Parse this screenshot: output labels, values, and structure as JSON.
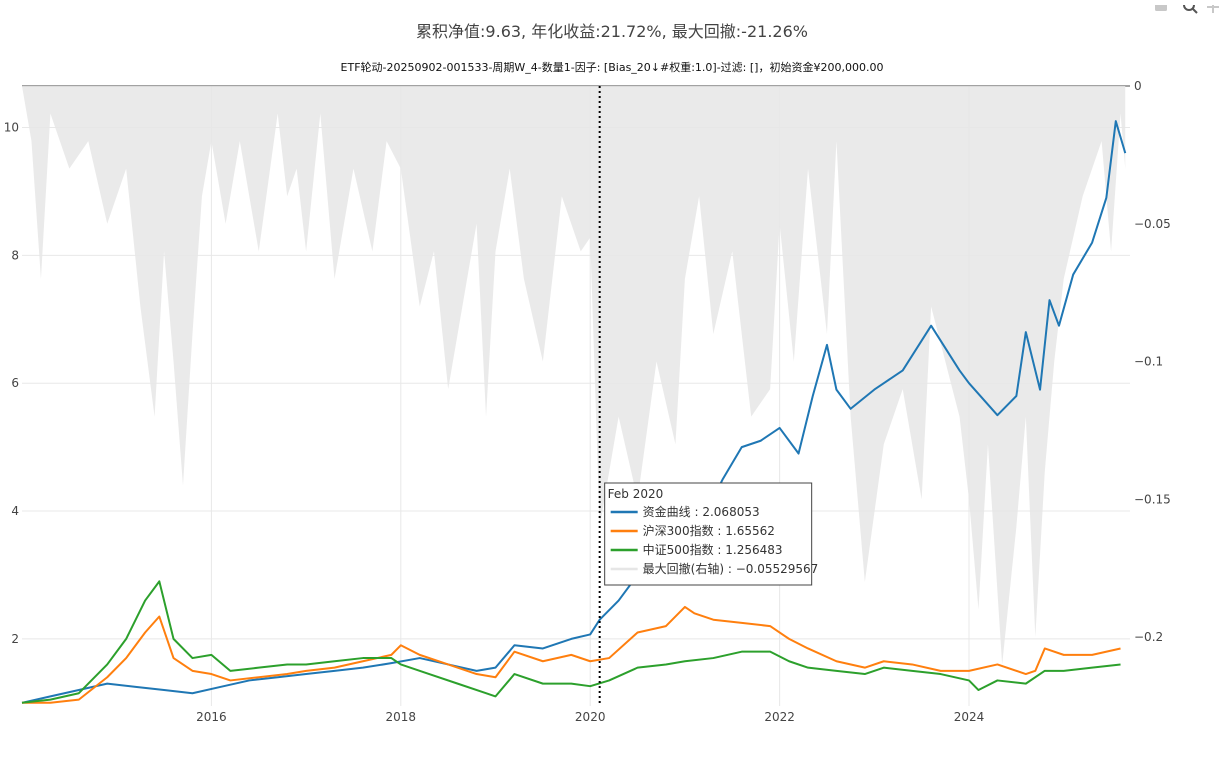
{
  "chart_data": {
    "type": "line",
    "title": "累积净值:9.63, 年化收益:21.72%, 最大回撤:-21.26%",
    "subtitle": "ETF轮动-20250902-001533-周期W_4-数量1-因子: [Bias_20↓#权重:1.0]-过滤: []，初始资金¥200,000.00",
    "xlim": [
      2014.0,
      2025.7
    ],
    "ylim": [
      0.95,
      10.65
    ],
    "y2lim": [
      -0.225,
      0.0
    ],
    "x_ticks": [
      2016,
      2018,
      2020,
      2022,
      2024
    ],
    "x_tick_labels": [
      "2016",
      "2018",
      "2020",
      "2022",
      "2024"
    ],
    "y_ticks": [
      2,
      4,
      6,
      8,
      10
    ],
    "y_tick_labels": [
      "2",
      "4",
      "6",
      "8",
      "10"
    ],
    "y2_ticks": [
      0,
      -0.05,
      -0.1,
      -0.15,
      -0.2
    ],
    "y2_tick_labels": [
      "0",
      "−0.05",
      "−0.1",
      "−0.15",
      "−0.2"
    ],
    "grid": true,
    "series": [
      {
        "name": "资金曲线",
        "color": "#1f77b4",
        "x": [
          2014.0,
          2014.3,
          2014.6,
          2014.9,
          2015.2,
          2015.5,
          2015.8,
          2016.1,
          2016.4,
          2016.7,
          2017.0,
          2017.3,
          2017.6,
          2017.9,
          2018.2,
          2018.5,
          2018.8,
          2019.0,
          2019.2,
          2019.5,
          2019.8,
          2020.0,
          2020.1,
          2020.3,
          2020.6,
          2020.9,
          2021.2,
          2021.4,
          2021.6,
          2021.8,
          2022.0,
          2022.2,
          2022.35,
          2022.5,
          2022.6,
          2022.75,
          2023.0,
          2023.3,
          2023.6,
          2023.9,
          2024.0,
          2024.3,
          2024.5,
          2024.6,
          2024.75,
          2024.85,
          2024.95,
          2025.1,
          2025.3,
          2025.45,
          2025.55,
          2025.65
        ],
        "y": [
          1.0,
          1.1,
          1.2,
          1.3,
          1.25,
          1.2,
          1.15,
          1.25,
          1.35,
          1.4,
          1.45,
          1.5,
          1.55,
          1.62,
          1.7,
          1.6,
          1.5,
          1.55,
          1.9,
          1.85,
          2.0,
          2.07,
          2.3,
          2.6,
          3.2,
          3.3,
          3.9,
          4.5,
          5.0,
          5.1,
          5.3,
          4.9,
          5.8,
          6.6,
          5.9,
          5.6,
          5.9,
          6.2,
          6.9,
          6.2,
          6.0,
          5.5,
          5.8,
          6.8,
          5.9,
          7.3,
          6.9,
          7.7,
          8.2,
          8.9,
          10.1,
          9.6
        ]
      },
      {
        "name": "沪深300指数",
        "color": "#ff7f0e",
        "x": [
          2014.0,
          2014.3,
          2014.6,
          2014.9,
          2015.1,
          2015.3,
          2015.45,
          2015.6,
          2015.8,
          2016.0,
          2016.2,
          2016.5,
          2016.8,
          2017.0,
          2017.3,
          2017.6,
          2017.9,
          2018.0,
          2018.2,
          2018.5,
          2018.8,
          2019.0,
          2019.2,
          2019.5,
          2019.8,
          2020.0,
          2020.2,
          2020.5,
          2020.8,
          2021.0,
          2021.1,
          2021.3,
          2021.6,
          2021.9,
          2022.1,
          2022.3,
          2022.6,
          2022.9,
          2023.1,
          2023.4,
          2023.7,
          2024.0,
          2024.3,
          2024.6,
          2024.7,
          2024.8,
          2025.0,
          2025.3,
          2025.6
        ],
        "y": [
          1.0,
          1.0,
          1.05,
          1.4,
          1.7,
          2.1,
          2.35,
          1.7,
          1.5,
          1.45,
          1.35,
          1.4,
          1.45,
          1.5,
          1.55,
          1.65,
          1.75,
          1.9,
          1.75,
          1.6,
          1.45,
          1.4,
          1.8,
          1.65,
          1.75,
          1.65,
          1.7,
          2.1,
          2.2,
          2.5,
          2.4,
          2.3,
          2.25,
          2.2,
          2.0,
          1.85,
          1.65,
          1.55,
          1.65,
          1.6,
          1.5,
          1.5,
          1.6,
          1.45,
          1.5,
          1.85,
          1.75,
          1.75,
          1.85
        ]
      },
      {
        "name": "中证500指数",
        "color": "#2ca02c",
        "x": [
          2014.0,
          2014.3,
          2014.6,
          2014.9,
          2015.1,
          2015.3,
          2015.45,
          2015.6,
          2015.8,
          2016.0,
          2016.2,
          2016.5,
          2016.8,
          2017.0,
          2017.3,
          2017.6,
          2017.9,
          2018.0,
          2018.3,
          2018.6,
          2018.9,
          2019.0,
          2019.2,
          2019.5,
          2019.8,
          2020.0,
          2020.2,
          2020.5,
          2020.8,
          2021.0,
          2021.3,
          2021.6,
          2021.9,
          2022.1,
          2022.3,
          2022.6,
          2022.9,
          2023.1,
          2023.4,
          2023.7,
          2024.0,
          2024.1,
          2024.3,
          2024.6,
          2024.8,
          2025.0,
          2025.3,
          2025.6
        ],
        "y": [
          1.0,
          1.05,
          1.15,
          1.6,
          2.0,
          2.6,
          2.9,
          2.0,
          1.7,
          1.75,
          1.5,
          1.55,
          1.6,
          1.6,
          1.65,
          1.7,
          1.7,
          1.6,
          1.45,
          1.3,
          1.15,
          1.1,
          1.45,
          1.3,
          1.3,
          1.26,
          1.35,
          1.55,
          1.6,
          1.65,
          1.7,
          1.8,
          1.8,
          1.65,
          1.55,
          1.5,
          1.45,
          1.55,
          1.5,
          1.45,
          1.35,
          1.2,
          1.35,
          1.3,
          1.5,
          1.5,
          1.55,
          1.6
        ]
      },
      {
        "name": "最大回撤(右轴)",
        "color": "#e6e6e6",
        "axis": "right",
        "x": [
          2014.0,
          2014.1,
          2014.2,
          2014.3,
          2014.5,
          2014.7,
          2014.9,
          2015.1,
          2015.25,
          2015.4,
          2015.5,
          2015.6,
          2015.7,
          2015.8,
          2015.9,
          2016.0,
          2016.15,
          2016.3,
          2016.5,
          2016.7,
          2016.8,
          2016.9,
          2017.0,
          2017.15,
          2017.3,
          2017.5,
          2017.7,
          2017.85,
          2018.0,
          2018.2,
          2018.35,
          2018.5,
          2018.65,
          2018.8,
          2018.9,
          2019.0,
          2019.15,
          2019.3,
          2019.5,
          2019.7,
          2019.9,
          2020.0,
          2020.1,
          2020.3,
          2020.5,
          2020.7,
          2020.9,
          2021.0,
          2021.15,
          2021.3,
          2021.5,
          2021.7,
          2021.9,
          2022.0,
          2022.15,
          2022.3,
          2022.5,
          2022.6,
          2022.75,
          2022.9,
          2023.1,
          2023.3,
          2023.5,
          2023.6,
          2023.75,
          2023.9,
          2024.0,
          2024.1,
          2024.2,
          2024.35,
          2024.5,
          2024.6,
          2024.7,
          2024.8,
          2024.9,
          2025.0,
          2025.2,
          2025.4,
          2025.5,
          2025.6,
          2025.65
        ],
        "y": [
          0.0,
          -0.02,
          -0.07,
          -0.01,
          -0.03,
          -0.02,
          -0.05,
          -0.03,
          -0.08,
          -0.12,
          -0.06,
          -0.1,
          -0.145,
          -0.09,
          -0.04,
          -0.02,
          -0.05,
          -0.02,
          -0.06,
          -0.01,
          -0.04,
          -0.03,
          -0.06,
          -0.01,
          -0.07,
          -0.03,
          -0.06,
          -0.02,
          -0.03,
          -0.08,
          -0.06,
          -0.11,
          -0.08,
          -0.05,
          -0.12,
          -0.06,
          -0.03,
          -0.07,
          -0.1,
          -0.04,
          -0.06,
          -0.055,
          -0.16,
          -0.12,
          -0.15,
          -0.1,
          -0.13,
          -0.07,
          -0.04,
          -0.09,
          -0.06,
          -0.12,
          -0.11,
          -0.05,
          -0.1,
          -0.03,
          -0.09,
          -0.02,
          -0.12,
          -0.18,
          -0.13,
          -0.11,
          -0.15,
          -0.08,
          -0.1,
          -0.12,
          -0.15,
          -0.19,
          -0.13,
          -0.21,
          -0.16,
          -0.12,
          -0.2,
          -0.14,
          -0.1,
          -0.07,
          -0.04,
          -0.02,
          -0.06,
          -0.01,
          -0.03
        ]
      }
    ],
    "hover": {
      "x": 2020.1,
      "title": "Feb 2020",
      "entries": [
        {
          "label": "资金曲线 : 2.068053",
          "color": "#1f77b4"
        },
        {
          "label": "沪深300指数 : 1.65562",
          "color": "#ff7f0e"
        },
        {
          "label": "中证500指数 : 1.256483",
          "color": "#2ca02c"
        },
        {
          "label": "最大回撤(右轴) : −0.05529567",
          "color": "#e6e6e6"
        }
      ]
    }
  }
}
